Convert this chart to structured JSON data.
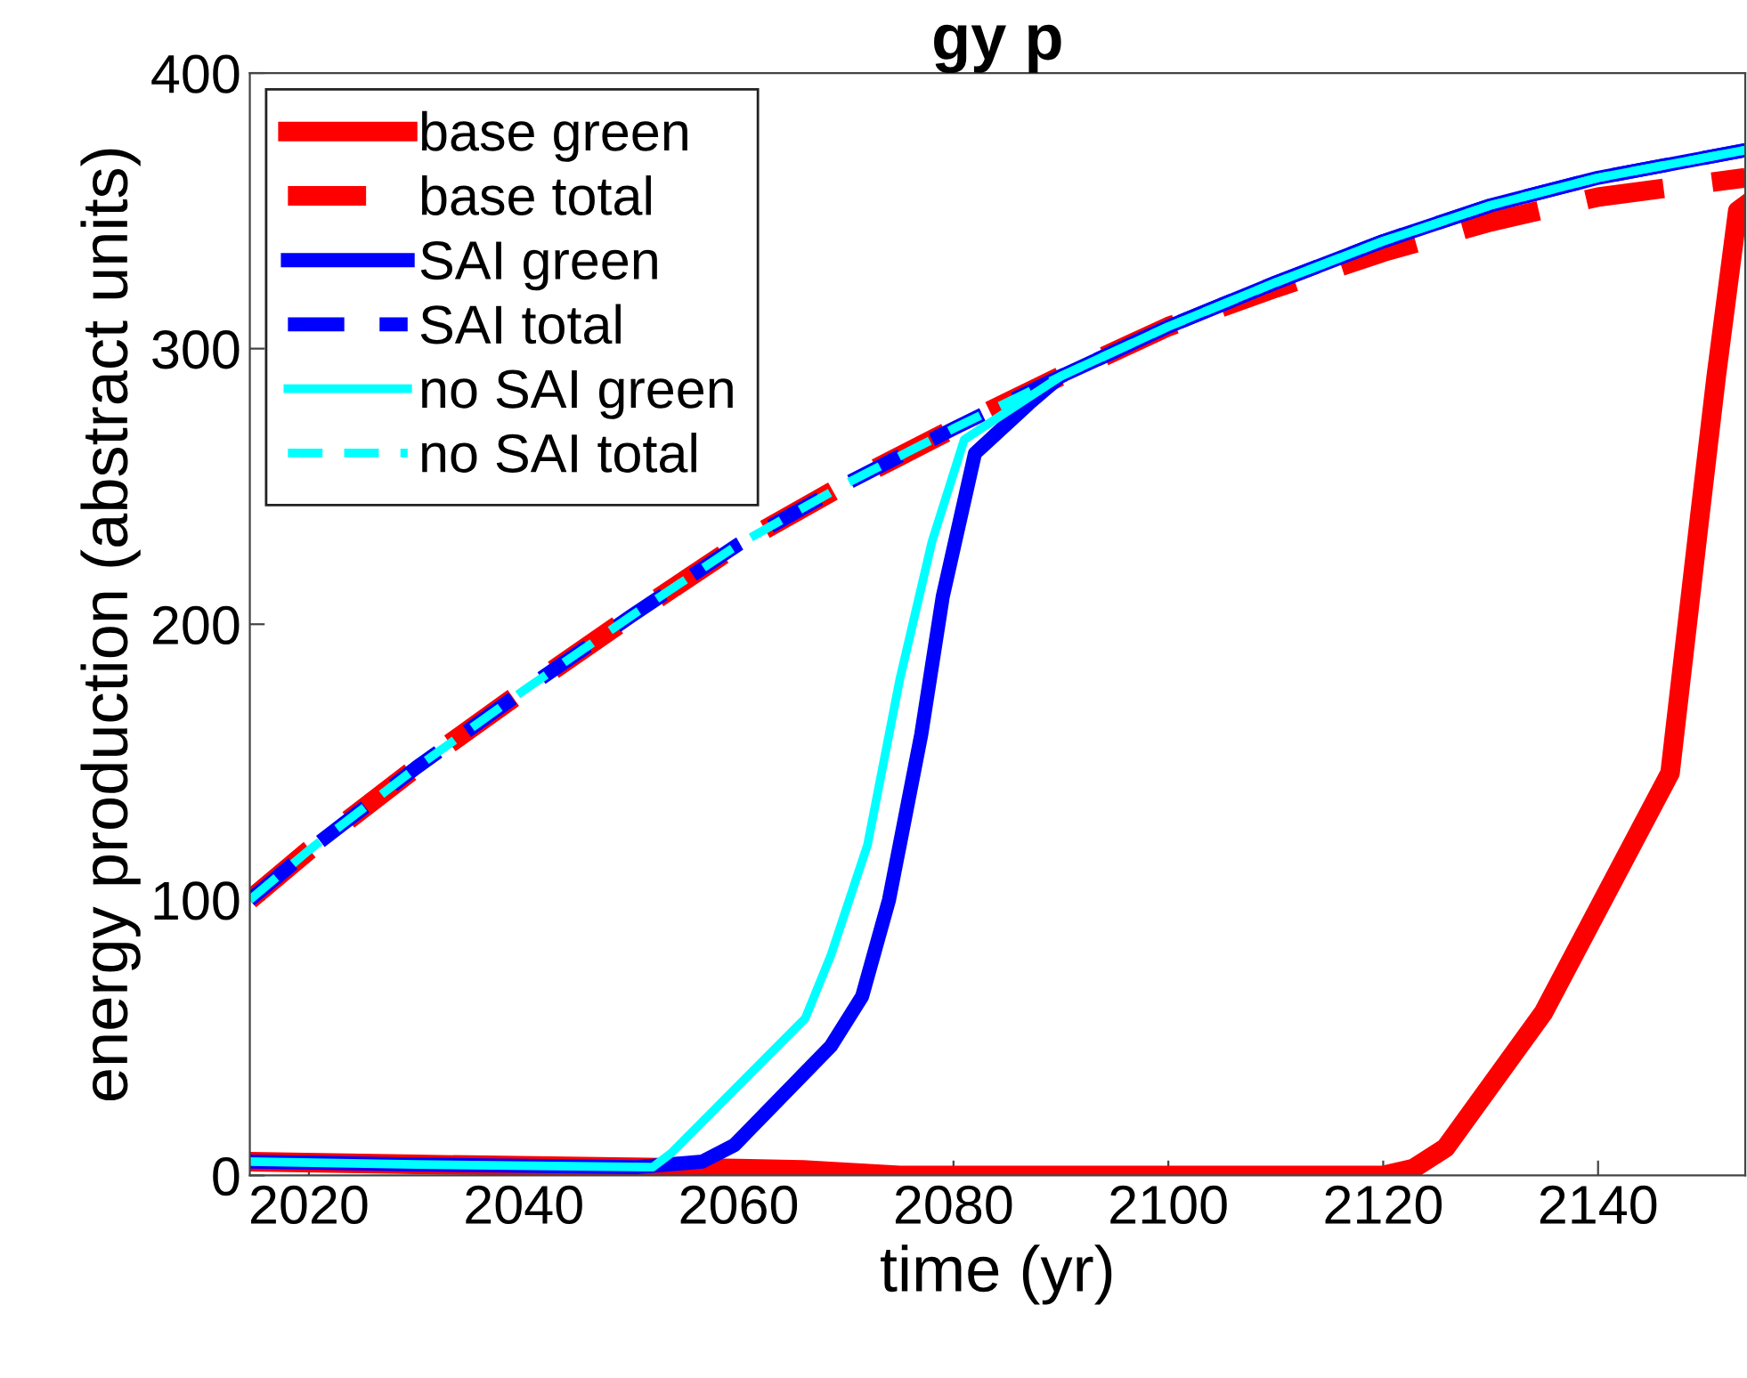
{
  "chart_data": {
    "type": "line",
    "title": "gy p",
    "xlabel": "time (yr)",
    "ylabel": "energy production (abstract units)",
    "xlim": [
      2014.5,
      2153.7
    ],
    "xticks": [
      2020,
      2040,
      2060,
      2080,
      2100,
      2120,
      2140
    ],
    "ylim": [
      0,
      400
    ],
    "yticks": [
      0,
      100,
      200,
      300,
      400
    ],
    "grid": false,
    "legend": "top left",
    "marker": "none",
    "series": [
      {
        "name": "base green",
        "color": "#ff0000",
        "line_style": "solid",
        "x": [
          2014.5,
          2030,
          2050,
          2060,
          2066,
          2075,
          2090,
          2110,
          2120,
          2122.8,
          2125.8,
          2134.9,
          2146.7,
          2149.4,
          2151,
          2153,
          2153.7
        ],
        "values": [
          5,
          4,
          3,
          2.5,
          2,
          0,
          0,
          0,
          0,
          2.5,
          10,
          59,
          146,
          237,
          290,
          350,
          352
        ]
      },
      {
        "name": "base total",
        "color": "#ff0000",
        "line_style": "dashed",
        "x": [
          2014.5,
          2020,
          2030,
          2040,
          2050,
          2060,
          2070,
          2080,
          2090,
          2100,
          2110,
          2120,
          2130,
          2140,
          2153.7
        ],
        "values": [
          100,
          118,
          148,
          176,
          203,
          229,
          251,
          271,
          290,
          308,
          322,
          335,
          346,
          355,
          362
        ]
      },
      {
        "name": "SAI green",
        "color": "#0000ff",
        "line_style": "solid",
        "x": [
          2014.5,
          2030,
          2050.5,
          2056.6,
          2059.6,
          2068.6,
          2071.5,
          2074,
          2077,
          2079,
          2082,
          2087,
          2090,
          2100,
          2110,
          2120,
          2130,
          2140,
          2153.7
        ],
        "values": [
          5,
          4,
          3,
          5,
          11,
          47,
          65,
          100,
          160,
          210,
          262,
          280,
          290,
          308,
          324,
          339,
          352,
          362,
          372
        ]
      },
      {
        "name": "SAI total",
        "color": "#0000ff",
        "line_style": "dashed",
        "x": [
          2014.5,
          2020,
          2030,
          2040,
          2050,
          2060,
          2070,
          2080,
          2090,
          2100,
          2110,
          2120,
          2130,
          2140,
          2153.7
        ],
        "values": [
          100,
          118,
          148,
          176,
          203,
          229,
          251,
          271,
          290,
          308,
          324,
          339,
          352,
          362,
          372
        ]
      },
      {
        "name": "no SAI green",
        "color": "#00ffff",
        "line_style": "solid",
        "x": [
          2014.5,
          2030,
          2052,
          2053.7,
          2066.2,
          2068.6,
          2072,
          2075,
          2078,
          2081,
          2090,
          2100,
          2110,
          2120,
          2130,
          2140,
          2153.7
        ],
        "values": [
          5,
          4,
          3,
          8,
          57,
          80,
          120,
          180,
          230,
          267,
          290,
          308,
          324,
          339,
          352,
          362,
          372
        ]
      },
      {
        "name": "no SAI total",
        "color": "#00ffff",
        "line_style": "dashed",
        "x": [
          2014.5,
          2020,
          2030,
          2040,
          2050,
          2060,
          2070,
          2080,
          2090,
          2100,
          2110,
          2120,
          2130,
          2140,
          2153.7
        ],
        "values": [
          100,
          118,
          148,
          176,
          203,
          229,
          251,
          271,
          290,
          308,
          324,
          339,
          352,
          362,
          372
        ]
      }
    ]
  }
}
